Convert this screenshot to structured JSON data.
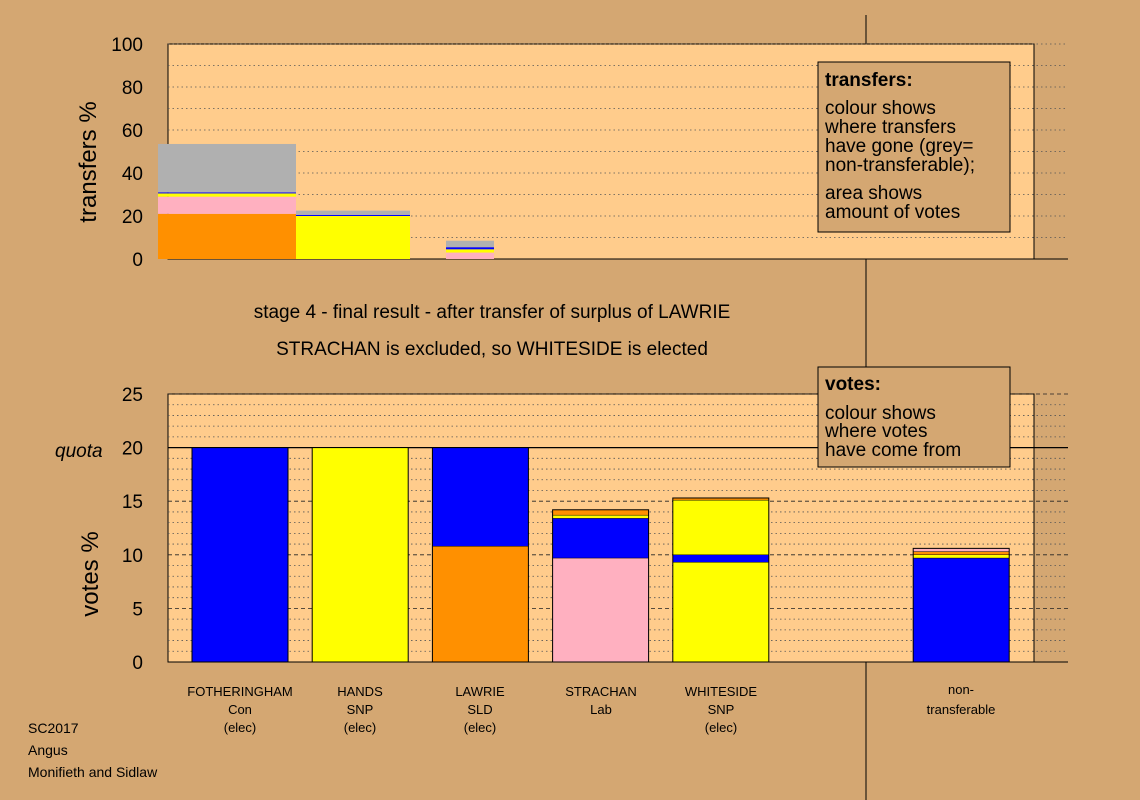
{
  "colors": {
    "background": "#d4a772",
    "plot_bg": "#ffcc8c",
    "Con": "#0000ff",
    "SNP": "#ffff00",
    "SLD": "#ff9000",
    "Lab": "#ffb0c0",
    "non_transferable": "#b0b0b0"
  },
  "caption": {
    "stage_line": "stage 4 - final result - after transfer of surplus of LAWRIE",
    "result_line": "STRACHAN is excluded, so WHITESIDE is elected"
  },
  "footer": [
    "SC2017",
    "Angus",
    "Monifieth and Sidlaw"
  ],
  "candidates": [
    {
      "name": "FOTHERINGHAM",
      "party": "Con",
      "status": "(elec)"
    },
    {
      "name": "HANDS",
      "party": "SNP",
      "status": "(elec)"
    },
    {
      "name": "LAWRIE",
      "party": "SLD",
      "status": "(elec)"
    },
    {
      "name": "STRACHAN",
      "party": "Lab",
      "status": ""
    },
    {
      "name": "WHITESIDE",
      "party": "SNP",
      "status": "(elec)"
    },
    {
      "name": "non-",
      "party": "transferable",
      "status": ""
    }
  ],
  "chart_data": [
    {
      "type": "bar",
      "name": "transfers",
      "ylabel": "transfers %",
      "ylim": [
        0,
        100
      ],
      "yticks": [
        0,
        20,
        40,
        60,
        80,
        100
      ],
      "legend": {
        "title": "transfers:",
        "lines": [
          "colour shows",
          "where transfers",
          "have gone (grey=",
          "non-transferable);",
          "area shows",
          "amount of votes"
        ]
      },
      "bars": [
        {
          "x_start": 0.0,
          "x_end": 1.15,
          "segments": [
            {
              "party": "SLD",
              "value": 21
            },
            {
              "party": "Lab",
              "value": 8
            },
            {
              "party": "SNP",
              "value": 1.5
            },
            {
              "party": "Con",
              "value": 0.5
            },
            {
              "party": "non_transferable",
              "value": 22.5
            }
          ]
        },
        {
          "x_start": 1.15,
          "x_end": 2.1,
          "segments": [
            {
              "party": "SNP",
              "value": 20
            },
            {
              "party": "Con",
              "value": 0.5
            },
            {
              "party": "non_transferable",
              "value": 2
            }
          ]
        },
        {
          "x_start": 2.4,
          "x_end": 2.8,
          "segments": [
            {
              "party": "Lab",
              "value": 3
            },
            {
              "party": "SNP",
              "value": 1.5
            },
            {
              "party": "Con",
              "value": 1
            },
            {
              "party": "non_transferable",
              "value": 3
            }
          ]
        }
      ]
    },
    {
      "type": "bar",
      "name": "votes",
      "ylabel": "votes %",
      "ylim": [
        0,
        25
      ],
      "yticks": [
        0,
        5,
        10,
        15,
        20,
        25
      ],
      "quota_label": "quota",
      "quota": 20,
      "legend": {
        "title": "votes:",
        "lines": [
          "colour shows",
          "where votes",
          "have come from"
        ]
      },
      "bars": [
        {
          "candidate": "FOTHERINGHAM",
          "segments": [
            {
              "party": "Con",
              "value": 20
            }
          ]
        },
        {
          "candidate": "HANDS",
          "segments": [
            {
              "party": "SNP",
              "value": 20
            }
          ]
        },
        {
          "candidate": "LAWRIE",
          "segments": [
            {
              "party": "SLD",
              "value": 10.8
            },
            {
              "party": "Con",
              "value": 9.2
            }
          ]
        },
        {
          "candidate": "STRACHAN",
          "segments": [
            {
              "party": "Lab",
              "value": 9.7
            },
            {
              "party": "Con",
              "value": 3.7
            },
            {
              "party": "SNP",
              "value": 0.3
            },
            {
              "party": "SLD",
              "value": 0.5
            }
          ]
        },
        {
          "candidate": "WHITESIDE",
          "segments": [
            {
              "party": "SNP",
              "value": 9.3
            },
            {
              "party": "Con",
              "value": 0.7
            },
            {
              "party": "SNP",
              "value": 5.1
            },
            {
              "party": "SLD",
              "value": 0.2
            }
          ]
        },
        {
          "candidate": "non-transferable",
          "segments": [
            {
              "party": "Con",
              "value": 9.7
            },
            {
              "party": "SNP",
              "value": 0.3
            },
            {
              "party": "SLD",
              "value": 0.3
            },
            {
              "party": "Lab",
              "value": 0.3
            }
          ]
        }
      ]
    }
  ]
}
